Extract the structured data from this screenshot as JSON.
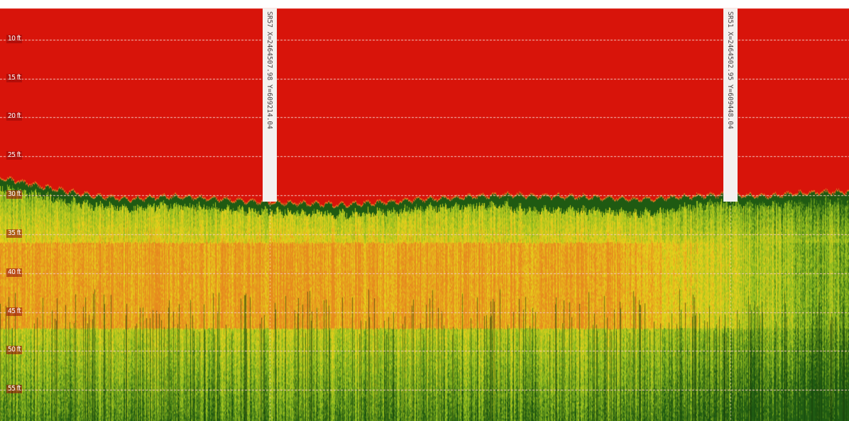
{
  "chart_data": {
    "type": "heatmap",
    "title": "",
    "xlabel": "",
    "ylabel": "",
    "depth_unit": "ft",
    "ylim_ft": [
      6,
      59
    ],
    "y_ticks": [
      {
        "value": 10,
        "label": "10 ft"
      },
      {
        "value": 15,
        "label": "15 ft"
      },
      {
        "value": 20,
        "label": "20 ft"
      },
      {
        "value": 25,
        "label": "25 ft"
      },
      {
        "value": 30,
        "label": "30 ft"
      },
      {
        "value": 35,
        "label": "35 ft"
      },
      {
        "value": 40,
        "label": "40 ft"
      },
      {
        "value": 45,
        "label": "45 ft"
      },
      {
        "value": 50,
        "label": "50 ft"
      },
      {
        "value": 55,
        "label": "55 ft"
      }
    ],
    "grid": true,
    "bottom_profile_ft": [
      {
        "x": 0.0,
        "depth": 27.8
      },
      {
        "x": 0.05,
        "depth": 29.0
      },
      {
        "x": 0.1,
        "depth": 30.0
      },
      {
        "x": 0.15,
        "depth": 30.6
      },
      {
        "x": 0.2,
        "depth": 30.2
      },
      {
        "x": 0.25,
        "depth": 30.5
      },
      {
        "x": 0.3,
        "depth": 30.9
      },
      {
        "x": 0.35,
        "depth": 31.1
      },
      {
        "x": 0.4,
        "depth": 31.3
      },
      {
        "x": 0.45,
        "depth": 31.0
      },
      {
        "x": 0.5,
        "depth": 30.6
      },
      {
        "x": 0.55,
        "depth": 30.3
      },
      {
        "x": 0.6,
        "depth": 30.0
      },
      {
        "x": 0.65,
        "depth": 30.2
      },
      {
        "x": 0.7,
        "depth": 30.3
      },
      {
        "x": 0.75,
        "depth": 30.6
      },
      {
        "x": 0.8,
        "depth": 30.3
      },
      {
        "x": 0.85,
        "depth": 30.0
      },
      {
        "x": 0.9,
        "depth": 30.2
      },
      {
        "x": 0.95,
        "depth": 29.8
      },
      {
        "x": 1.0,
        "depth": 29.6
      }
    ],
    "fix_markers": [
      {
        "x": 0.318,
        "label": "SR57 X=2464507.98  Y=609214.04"
      },
      {
        "x": 0.86,
        "label": "SR51 X=2464502.95  Y=609448.04"
      }
    ],
    "colors": {
      "water_column": "#d8140a",
      "surface_line": "#e87a20",
      "strong_return": "#1f5a12",
      "mid_return": "#8fbc20",
      "yellow_return": "#e6d21c",
      "orange_return": "#e68a1e",
      "grid_line": "#f3c8c0"
    }
  }
}
